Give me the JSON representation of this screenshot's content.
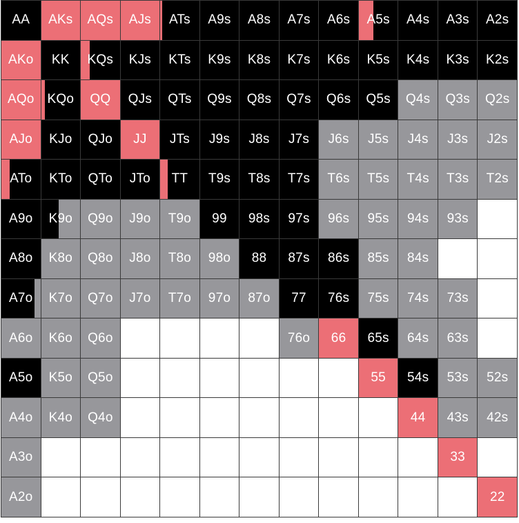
{
  "colors": {
    "raise": "#ec6f76",
    "call": "#000000",
    "mixed": "#97979b",
    "fold": "#ffffff"
  },
  "grid": {
    "rows": [
      [
        {
          "label": "AA",
          "action": "call"
        },
        {
          "label": "AKs",
          "action": "raise"
        },
        {
          "label": "AQs",
          "action": "raise"
        },
        {
          "label": "AJs",
          "action": "raise"
        },
        {
          "label": "ATs",
          "action": "call",
          "raise_pct": 0.05
        },
        {
          "label": "A9s",
          "action": "call"
        },
        {
          "label": "A8s",
          "action": "call"
        },
        {
          "label": "A7s",
          "action": "call"
        },
        {
          "label": "A6s",
          "action": "call"
        },
        {
          "label": "A5s",
          "action": "call",
          "raise_pct": 0.38
        },
        {
          "label": "A4s",
          "action": "call"
        },
        {
          "label": "A3s",
          "action": "call"
        },
        {
          "label": "A2s",
          "action": "call"
        }
      ],
      [
        {
          "label": "AKo",
          "action": "raise"
        },
        {
          "label": "KK",
          "action": "call"
        },
        {
          "label": "KQs",
          "action": "call",
          "raise_pct": 0.22
        },
        {
          "label": "KJs",
          "action": "call"
        },
        {
          "label": "KTs",
          "action": "call"
        },
        {
          "label": "K9s",
          "action": "call"
        },
        {
          "label": "K8s",
          "action": "call"
        },
        {
          "label": "K7s",
          "action": "call"
        },
        {
          "label": "K6s",
          "action": "call"
        },
        {
          "label": "K5s",
          "action": "call"
        },
        {
          "label": "K4s",
          "action": "call"
        },
        {
          "label": "K3s",
          "action": "call"
        },
        {
          "label": "K2s",
          "action": "call"
        }
      ],
      [
        {
          "label": "AQo",
          "action": "raise"
        },
        {
          "label": "KQo",
          "action": "call",
          "raise_pct": 0.1
        },
        {
          "label": "QQ",
          "action": "raise"
        },
        {
          "label": "QJs",
          "action": "call"
        },
        {
          "label": "QTs",
          "action": "call"
        },
        {
          "label": "Q9s",
          "action": "call"
        },
        {
          "label": "Q8s",
          "action": "call"
        },
        {
          "label": "Q7s",
          "action": "call"
        },
        {
          "label": "Q6s",
          "action": "call"
        },
        {
          "label": "Q5s",
          "action": "call"
        },
        {
          "label": "Q4s",
          "action": "mixed"
        },
        {
          "label": "Q3s",
          "action": "mixed"
        },
        {
          "label": "Q2s",
          "action": "mixed"
        }
      ],
      [
        {
          "label": "AJo",
          "action": "raise"
        },
        {
          "label": "KJo",
          "action": "call"
        },
        {
          "label": "QJo",
          "action": "call"
        },
        {
          "label": "JJ",
          "action": "raise"
        },
        {
          "label": "JTs",
          "action": "call"
        },
        {
          "label": "J9s",
          "action": "call"
        },
        {
          "label": "J8s",
          "action": "call"
        },
        {
          "label": "J7s",
          "action": "call"
        },
        {
          "label": "J6s",
          "action": "mixed"
        },
        {
          "label": "J5s",
          "action": "mixed"
        },
        {
          "label": "J4s",
          "action": "mixed"
        },
        {
          "label": "J3s",
          "action": "mixed"
        },
        {
          "label": "J2s",
          "action": "mixed"
        }
      ],
      [
        {
          "label": "ATo",
          "action": "call",
          "raise_pct": 0.22
        },
        {
          "label": "KTo",
          "action": "call"
        },
        {
          "label": "QTo",
          "action": "call"
        },
        {
          "label": "JTo",
          "action": "call"
        },
        {
          "label": "TT",
          "action": "call",
          "raise_pct": 0.2
        },
        {
          "label": "T9s",
          "action": "call"
        },
        {
          "label": "T8s",
          "action": "call"
        },
        {
          "label": "T7s",
          "action": "call"
        },
        {
          "label": "T6s",
          "action": "mixed"
        },
        {
          "label": "T5s",
          "action": "mixed"
        },
        {
          "label": "T4s",
          "action": "mixed"
        },
        {
          "label": "T3s",
          "action": "mixed"
        },
        {
          "label": "T2s",
          "action": "mixed"
        }
      ],
      [
        {
          "label": "A9o",
          "action": "call"
        },
        {
          "label": "K9o",
          "action": "mixed",
          "call_pct": 0.45
        },
        {
          "label": "Q9o",
          "action": "mixed"
        },
        {
          "label": "J9o",
          "action": "mixed"
        },
        {
          "label": "T9o",
          "action": "mixed"
        },
        {
          "label": "99",
          "action": "call"
        },
        {
          "label": "98s",
          "action": "call"
        },
        {
          "label": "97s",
          "action": "call"
        },
        {
          "label": "96s",
          "action": "mixed"
        },
        {
          "label": "95s",
          "action": "mixed"
        },
        {
          "label": "94s",
          "action": "mixed"
        },
        {
          "label": "93s",
          "action": "mixed"
        },
        {
          "label": "",
          "action": "fold"
        }
      ],
      [
        {
          "label": "A8o",
          "action": "call"
        },
        {
          "label": "K8o",
          "action": "mixed"
        },
        {
          "label": "Q8o",
          "action": "mixed"
        },
        {
          "label": "J8o",
          "action": "mixed"
        },
        {
          "label": "T8o",
          "action": "mixed"
        },
        {
          "label": "98o",
          "action": "mixed"
        },
        {
          "label": "88",
          "action": "call"
        },
        {
          "label": "87s",
          "action": "call"
        },
        {
          "label": "86s",
          "action": "call"
        },
        {
          "label": "85s",
          "action": "mixed"
        },
        {
          "label": "84s",
          "action": "mixed"
        },
        {
          "label": "",
          "action": "fold"
        },
        {
          "label": "",
          "action": "fold"
        }
      ],
      [
        {
          "label": "A7o",
          "action": "call",
          "mixed_right_pct": 0.15
        },
        {
          "label": "K7o",
          "action": "mixed"
        },
        {
          "label": "Q7o",
          "action": "mixed"
        },
        {
          "label": "J7o",
          "action": "mixed"
        },
        {
          "label": "T7o",
          "action": "mixed"
        },
        {
          "label": "97o",
          "action": "mixed"
        },
        {
          "label": "87o",
          "action": "mixed"
        },
        {
          "label": "77",
          "action": "call"
        },
        {
          "label": "76s",
          "action": "call"
        },
        {
          "label": "75s",
          "action": "mixed"
        },
        {
          "label": "74s",
          "action": "mixed"
        },
        {
          "label": "73s",
          "action": "mixed"
        },
        {
          "label": "",
          "action": "fold"
        }
      ],
      [
        {
          "label": "A6o",
          "action": "mixed"
        },
        {
          "label": "K6o",
          "action": "mixed"
        },
        {
          "label": "Q6o",
          "action": "mixed"
        },
        {
          "label": "",
          "action": "fold"
        },
        {
          "label": "",
          "action": "fold"
        },
        {
          "label": "",
          "action": "fold"
        },
        {
          "label": "",
          "action": "fold"
        },
        {
          "label": "76o",
          "action": "mixed"
        },
        {
          "label": "66",
          "action": "raise"
        },
        {
          "label": "65s",
          "action": "call"
        },
        {
          "label": "64s",
          "action": "mixed"
        },
        {
          "label": "63s",
          "action": "mixed"
        },
        {
          "label": "",
          "action": "fold"
        }
      ],
      [
        {
          "label": "A5o",
          "action": "call"
        },
        {
          "label": "K5o",
          "action": "mixed"
        },
        {
          "label": "Q5o",
          "action": "mixed"
        },
        {
          "label": "",
          "action": "fold"
        },
        {
          "label": "",
          "action": "fold"
        },
        {
          "label": "",
          "action": "fold"
        },
        {
          "label": "",
          "action": "fold"
        },
        {
          "label": "",
          "action": "fold"
        },
        {
          "label": "",
          "action": "fold"
        },
        {
          "label": "55",
          "action": "raise"
        },
        {
          "label": "54s",
          "action": "call"
        },
        {
          "label": "53s",
          "action": "mixed"
        },
        {
          "label": "52s",
          "action": "mixed"
        }
      ],
      [
        {
          "label": "A4o",
          "action": "mixed"
        },
        {
          "label": "K4o",
          "action": "mixed"
        },
        {
          "label": "Q4o",
          "action": "mixed"
        },
        {
          "label": "",
          "action": "fold"
        },
        {
          "label": "",
          "action": "fold"
        },
        {
          "label": "",
          "action": "fold"
        },
        {
          "label": "",
          "action": "fold"
        },
        {
          "label": "",
          "action": "fold"
        },
        {
          "label": "",
          "action": "fold"
        },
        {
          "label": "",
          "action": "fold"
        },
        {
          "label": "44",
          "action": "raise"
        },
        {
          "label": "43s",
          "action": "mixed"
        },
        {
          "label": "42s",
          "action": "mixed"
        }
      ],
      [
        {
          "label": "A3o",
          "action": "mixed"
        },
        {
          "label": "",
          "action": "fold"
        },
        {
          "label": "",
          "action": "fold"
        },
        {
          "label": "",
          "action": "fold"
        },
        {
          "label": "",
          "action": "fold"
        },
        {
          "label": "",
          "action": "fold"
        },
        {
          "label": "",
          "action": "fold"
        },
        {
          "label": "",
          "action": "fold"
        },
        {
          "label": "",
          "action": "fold"
        },
        {
          "label": "",
          "action": "fold"
        },
        {
          "label": "",
          "action": "fold"
        },
        {
          "label": "33",
          "action": "raise"
        },
        {
          "label": "",
          "action": "fold"
        }
      ],
      [
        {
          "label": "A2o",
          "action": "mixed"
        },
        {
          "label": "",
          "action": "fold"
        },
        {
          "label": "",
          "action": "fold"
        },
        {
          "label": "",
          "action": "fold"
        },
        {
          "label": "",
          "action": "fold"
        },
        {
          "label": "",
          "action": "fold"
        },
        {
          "label": "",
          "action": "fold"
        },
        {
          "label": "",
          "action": "fold"
        },
        {
          "label": "",
          "action": "fold"
        },
        {
          "label": "",
          "action": "fold"
        },
        {
          "label": "",
          "action": "fold"
        },
        {
          "label": "",
          "action": "fold"
        },
        {
          "label": "22",
          "action": "raise"
        }
      ]
    ]
  }
}
